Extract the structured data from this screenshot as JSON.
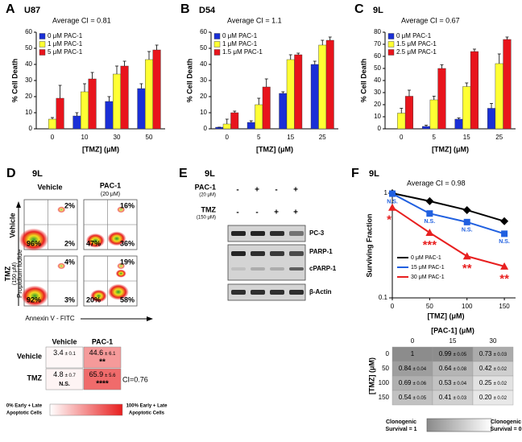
{
  "chart_data": [
    {
      "type": "bar",
      "panel": "A",
      "title": "U87",
      "annotation": "Average CI = 0.81",
      "xlabel": "[TMZ] (μM)",
      "ylabel": "% Cell Death",
      "categories": [
        "0",
        "10",
        "30",
        "50"
      ],
      "ylim": [
        0,
        60
      ],
      "yticks": [
        0,
        10,
        20,
        30,
        40,
        50,
        60
      ],
      "series": [
        {
          "name": "0 μM PAC-1",
          "color": "#1a2fd6",
          "values": [
            0,
            8,
            17,
            25
          ],
          "errors": [
            0,
            2,
            3,
            3
          ]
        },
        {
          "name": "1 μM PAC-1",
          "color": "#ffff33",
          "values": [
            6,
            23,
            34,
            43
          ],
          "errors": [
            1,
            5,
            5,
            5
          ]
        },
        {
          "name": "5 μM PAC-1",
          "color": "#e8141c",
          "values": [
            19,
            31,
            39,
            49
          ],
          "errors": [
            8,
            4,
            3,
            3
          ]
        }
      ]
    },
    {
      "type": "bar",
      "panel": "B",
      "title": "D54",
      "annotation": "Average CI = 1.1",
      "xlabel": "[TMZ] (μM)",
      "ylabel": "% Cell Death",
      "categories": [
        "0",
        "5",
        "15",
        "25"
      ],
      "ylim": [
        0,
        60
      ],
      "yticks": [
        0,
        10,
        20,
        30,
        40,
        50,
        60
      ],
      "series": [
        {
          "name": "0 μM PAC-1",
          "color": "#1a2fd6",
          "values": [
            1,
            4,
            22,
            40
          ],
          "errors": [
            0,
            1,
            1,
            2
          ]
        },
        {
          "name": "1 μM PAC-1",
          "color": "#ffff33",
          "values": [
            3,
            15,
            43,
            52
          ],
          "errors": [
            3,
            4,
            3,
            3
          ]
        },
        {
          "name": "1.5 μM PAC-1",
          "color": "#e8141c",
          "values": [
            10,
            26,
            46,
            55
          ],
          "errors": [
            1,
            5,
            1,
            2
          ]
        }
      ]
    },
    {
      "type": "bar",
      "panel": "C",
      "title": "9L",
      "annotation": "Average CI = 0.67",
      "xlabel": "[TMZ] (μM)",
      "ylabel": "% Cell Death",
      "categories": [
        "0",
        "5",
        "15",
        "25"
      ],
      "ylim": [
        0,
        80
      ],
      "yticks": [
        0,
        10,
        20,
        30,
        40,
        50,
        60,
        70,
        80
      ],
      "series": [
        {
          "name": "0 μM PAC-1",
          "color": "#1a2fd6",
          "values": [
            0,
            2,
            8,
            17
          ],
          "errors": [
            0,
            1,
            1,
            4
          ]
        },
        {
          "name": "1.5 μM PAC-1",
          "color": "#ffff33",
          "values": [
            13,
            24,
            35,
            54
          ],
          "errors": [
            4,
            3,
            3,
            8
          ]
        },
        {
          "name": "2.5 μM PAC-1",
          "color": "#e8141c",
          "values": [
            27,
            50,
            64,
            74
          ],
          "errors": [
            5,
            3,
            2,
            2
          ]
        }
      ]
    },
    {
      "type": "line",
      "panel": "F",
      "title": "9L",
      "annotation": "Average CI = 0.98",
      "xlabel": "[TMZ] (μM)",
      "ylabel": "Surviving Fraction",
      "x": [
        0,
        50,
        100,
        150
      ],
      "xlim": [
        0,
        165
      ],
      "xticks": [
        0,
        50,
        100,
        150
      ],
      "ylim": [
        0.1,
        1
      ],
      "yticks": [
        0.1,
        1
      ],
      "log": true,
      "series": [
        {
          "name": "0 μM PAC-1",
          "color": "#000000",
          "marker": "diamond",
          "values": [
            1,
            0.84,
            0.69,
            0.54
          ]
        },
        {
          "name": "15 μM PAC-1",
          "color": "#2060e0",
          "marker": "square",
          "values": [
            0.99,
            0.64,
            0.53,
            0.41
          ],
          "point_labels": [
            "N.S.",
            "N.S.",
            "N.S.",
            "N.S."
          ]
        },
        {
          "name": "30 μM PAC-1",
          "color": "#e82020",
          "marker": "triangle",
          "values": [
            0.73,
            0.42,
            0.25,
            0.2
          ],
          "point_labels": [
            "*",
            "***",
            "**",
            "**"
          ]
        }
      ]
    }
  ],
  "flow": {
    "panel": "D",
    "title": "9L",
    "columns": [
      "Vehicle",
      "PAC-1"
    ],
    "pac1_dose": "(20 μM)",
    "rows": [
      "Vehicle",
      "TMZ"
    ],
    "tmz_dose": "(150 μM)",
    "y_axis": "Propidium Iodide",
    "x_axis": "Annexin V - FITC",
    "plots": [
      [
        {
          "ur": "2%",
          "ll": "96%",
          "lr": "2%"
        },
        {
          "ur": "16%",
          "ll": "47%",
          "lr": "36%"
        }
      ],
      [
        {
          "ur": "4%",
          "ll": "92%",
          "lr": "3%"
        },
        {
          "ur": "19%",
          "ll": "20%",
          "lr": "58%"
        }
      ]
    ]
  },
  "apoptosis_table": {
    "columns": [
      "Vehicle",
      "PAC-1"
    ],
    "rows": [
      {
        "label": "Vehicle",
        "cells": [
          {
            "mean": "3.4",
            "sd": "± 0.1"
          },
          {
            "mean": "44.6",
            "sd": "± 6.1",
            "sig": "**"
          }
        ]
      },
      {
        "label": "TMZ",
        "cells": [
          {
            "mean": "4.8",
            "sd": "± 0.7",
            "sig": "N.S."
          },
          {
            "mean": "65.9",
            "sd": "± 5.6",
            "sig": "****"
          }
        ]
      }
    ],
    "ci": "CI=0.76",
    "legend_low": [
      "0% Early + Late",
      "Apoptotic Cells"
    ],
    "legend_high": [
      "100% Early + Late",
      "Apoptotic Cells"
    ]
  },
  "western": {
    "panel": "E",
    "title": "9L",
    "pac1": "PAC-1",
    "pac1_dose": "(20 μM)",
    "pac1_signs": [
      "-",
      "+",
      "-",
      "+"
    ],
    "tmz": "TMZ",
    "tmz_dose": "(150 μM)",
    "tmz_signs": [
      "-",
      "-",
      "+",
      "+"
    ],
    "bands": [
      "PC-3",
      "PARP-1",
      "cPARP-1",
      "β-Actin"
    ]
  },
  "survival_table": {
    "column_title": "[PAC-1] (μM)",
    "columns": [
      "0",
      "15",
      "30"
    ],
    "row_title": "[TMZ] (μM)",
    "rows": [
      {
        "label": "0",
        "cells": [
          {
            "mean": "1"
          },
          {
            "mean": "0.99",
            "sd": "± 0.05"
          },
          {
            "mean": "0.73",
            "sd": "± 0.03"
          }
        ]
      },
      {
        "label": "50",
        "cells": [
          {
            "mean": "0.84",
            "sd": "± 0.04"
          },
          {
            "mean": "0.64",
            "sd": "± 0.08"
          },
          {
            "mean": "0.42",
            "sd": "± 0.02"
          }
        ]
      },
      {
        "label": "100",
        "cells": [
          {
            "mean": "0.69",
            "sd": "± 0.06"
          },
          {
            "mean": "0.53",
            "sd": "± 0.04"
          },
          {
            "mean": "0.25",
            "sd": "± 0.02"
          }
        ]
      },
      {
        "label": "150",
        "cells": [
          {
            "mean": "0.54",
            "sd": "± 0.05"
          },
          {
            "mean": "0.41",
            "sd": "± 0.03"
          },
          {
            "mean": "0.20",
            "sd": "± 0.02"
          }
        ]
      }
    ],
    "legend_high": [
      "Clonogenic",
      "Survival = 1"
    ],
    "legend_low": [
      "Clonogenic",
      "Survival = 0"
    ]
  }
}
